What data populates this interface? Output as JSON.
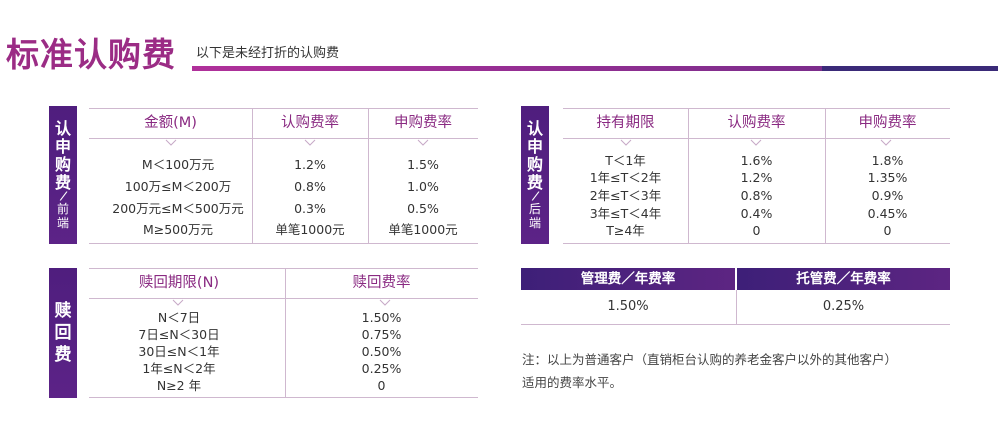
{
  "header": {
    "title": "标准认购费",
    "subtitle": "以下是未经打折的认购费"
  },
  "front": {
    "side_label": [
      "认",
      "申",
      "购",
      "费"
    ],
    "side_slash": "/",
    "side_small": [
      "前",
      "端"
    ],
    "headers": [
      "金额(M)",
      "认购费率",
      "申购费率"
    ],
    "rows": [
      [
        "M＜100万元",
        "1.2%",
        "1.5%"
      ],
      [
        "100万≤M＜200万",
        "0.8%",
        "1.0%"
      ],
      [
        "200万元≤M＜500万元",
        "0.3%",
        "0.5%"
      ],
      [
        "M≥500万元",
        "单笔1000元",
        "单笔1000元"
      ]
    ]
  },
  "back": {
    "side_label": [
      "认",
      "申",
      "购",
      "费"
    ],
    "side_slash": "/",
    "side_small": [
      "后",
      "端"
    ],
    "headers": [
      "持有期限",
      "认购费率",
      "申购费率"
    ],
    "rows": [
      [
        "T＜1年",
        "1.6%",
        "1.8%"
      ],
      [
        "1年≤T＜2年",
        "1.2%",
        "1.35%"
      ],
      [
        "2年≤T＜3年",
        "0.8%",
        "0.9%"
      ],
      [
        "3年≤T＜4年",
        "0.4%",
        "0.45%"
      ],
      [
        "T≥4年",
        "0",
        "0"
      ]
    ]
  },
  "redeem": {
    "side_label": [
      "赎",
      "回",
      "费"
    ],
    "headers": [
      "赎回期限(N)",
      "赎回费率"
    ],
    "rows": [
      [
        "N＜7日",
        "1.50%"
      ],
      [
        "7日≤N＜30日",
        "0.75%"
      ],
      [
        "30日≤N＜1年",
        "0.50%"
      ],
      [
        "1年≤N＜2年",
        "0.25%"
      ],
      [
        "N≥2 年",
        "0"
      ]
    ]
  },
  "mgmt": {
    "headers": [
      "管理费／年费率",
      "托管费／年费率"
    ],
    "values": [
      "1.50%",
      "0.25%"
    ]
  },
  "note": {
    "line1": "注：以上为普通客户（直销柜台认购的养老金客户以外的其他客户）",
    "line2": "适用的费率水平。"
  },
  "colors": {
    "title": "#9b2c85",
    "header_text": "#8a2a82",
    "band": "#4f1e7e",
    "rule": "#cfb8cf"
  }
}
